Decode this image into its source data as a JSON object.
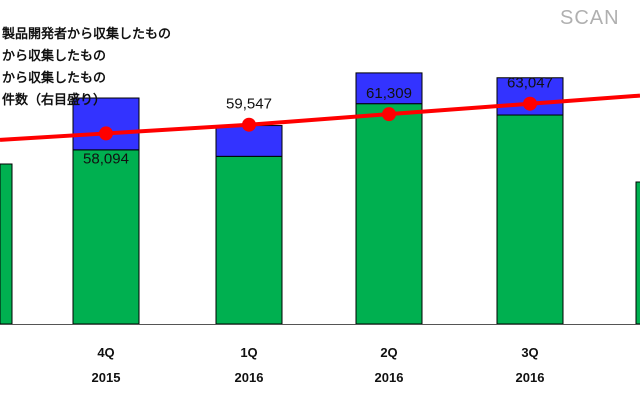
{
  "watermark": "SCAN",
  "legend": [
    "製品開発者から収集したもの",
    "から収集したもの",
    "から収集したもの",
    "件数（右目盛り）"
  ],
  "colors": {
    "series_a": "#00b050",
    "series_b": "#3333ff",
    "line": "#ff0000",
    "axis": "#555555",
    "border": "#000000"
  },
  "chart_data": {
    "type": "bar",
    "categories": [
      {
        "quarter": "4Q",
        "year": "2015"
      },
      {
        "quarter": "1Q",
        "year": "2016"
      },
      {
        "quarter": "2Q",
        "year": "2016"
      },
      {
        "quarter": "3Q",
        "year": "2016"
      }
    ],
    "series": [
      {
        "values": [
          215,
          207,
          272,
          258
        ]
      },
      {
        "values": [
          64,
          38,
          38,
          46
        ]
      }
    ],
    "line": {
      "values": [
        58094,
        59547,
        61309,
        63047
      ],
      "labels": [
        "58,094",
        "59,547",
        "61,309",
        "63,047"
      ]
    },
    "ylim_bars": [
      0,
      400
    ],
    "ylim_line": [
      47000,
      67000
    ]
  }
}
